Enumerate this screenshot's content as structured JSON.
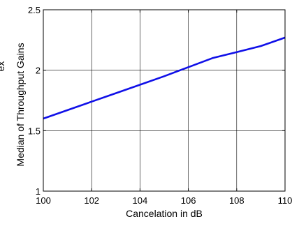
{
  "chart_data": {
    "type": "line",
    "title": "",
    "xlabel": "Cancelation in dB",
    "ylabel": "Median of Throughput  Gains",
    "ylabel_fragment": "ex",
    "xlim": [
      100,
      110
    ],
    "ylim": [
      1,
      2.5
    ],
    "x_ticks": [
      100,
      102,
      104,
      106,
      108,
      110
    ],
    "y_ticks": [
      1,
      1.5,
      2,
      2.5
    ],
    "x_tick_labels": [
      "100",
      "102",
      "104",
      "106",
      "108",
      "110"
    ],
    "y_tick_labels": [
      "1",
      "1.5",
      "2",
      "2.5"
    ],
    "grid": true,
    "series": [
      {
        "color": "#1010e8",
        "x": [
          100,
          101,
          102,
          103,
          104,
          105,
          106,
          107,
          108,
          109,
          110
        ],
        "y": [
          1.6,
          1.67,
          1.74,
          1.81,
          1.88,
          1.95,
          2.025,
          2.1,
          2.15,
          2.2,
          2.27
        ]
      }
    ]
  }
}
